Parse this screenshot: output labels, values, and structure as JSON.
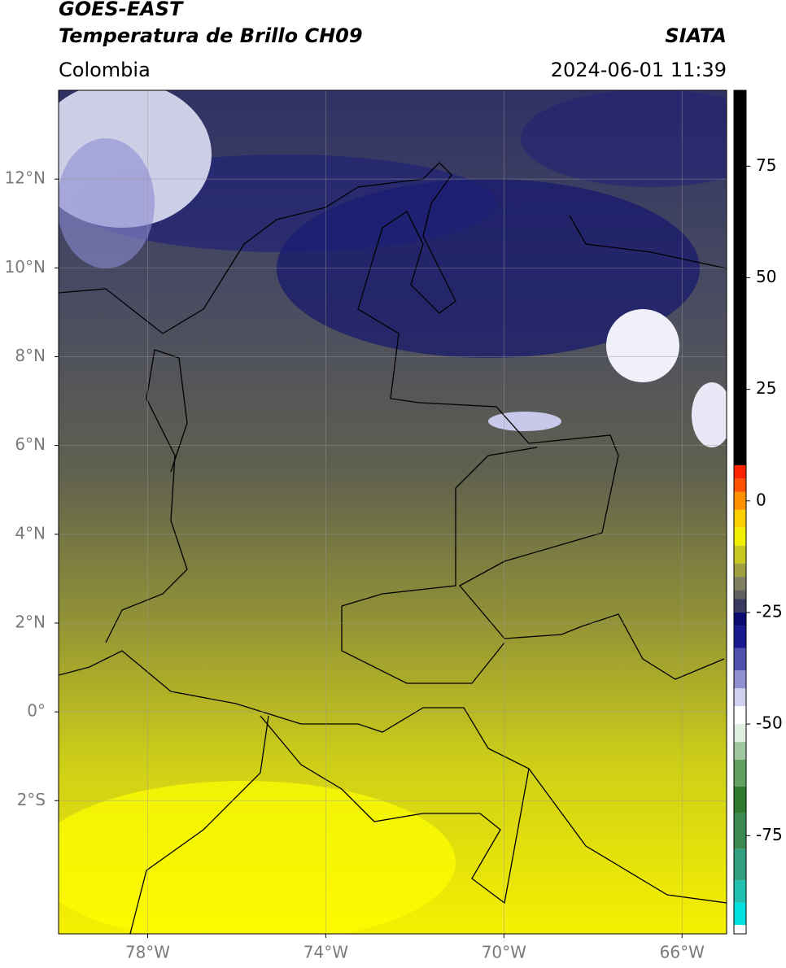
{
  "chart_data": {
    "type": "map",
    "title": "GOES-EAST",
    "subtitle": "Temperatura de Brillo CH09",
    "source": "SIATA",
    "region": "Colombia",
    "datetime": "2024-06-01 11:39",
    "xlim": [
      -80,
      -65
    ],
    "ylim": [
      -5,
      14
    ],
    "xticks": [
      {
        "value": -78,
        "label": "78°W"
      },
      {
        "value": -74,
        "label": "74°W"
      },
      {
        "value": -70,
        "label": "70°W"
      },
      {
        "value": -66,
        "label": "66°W"
      }
    ],
    "yticks": [
      {
        "value": -2,
        "label": "2°S"
      },
      {
        "value": 0,
        "label": "0°"
      },
      {
        "value": 2,
        "label": "2°N"
      },
      {
        "value": 4,
        "label": "4°N"
      },
      {
        "value": 6,
        "label": "6°N"
      },
      {
        "value": 8,
        "label": "8°N"
      },
      {
        "value": 10,
        "label": "10°N"
      },
      {
        "value": 12,
        "label": "12°N"
      }
    ],
    "grid": true,
    "colorbar": {
      "lim": [
        -97,
        92
      ],
      "ticks": [
        -75,
        -50,
        -25,
        0,
        25,
        50,
        75
      ],
      "stops": [
        {
          "value": -97,
          "color": "#ffffff"
        },
        {
          "value": -95,
          "color": "#00e0e0"
        },
        {
          "value": -90,
          "color": "#20c0b0"
        },
        {
          "value": -85,
          "color": "#30a080"
        },
        {
          "value": -78,
          "color": "#3a8a50"
        },
        {
          "value": -70,
          "color": "#2e7a2e"
        },
        {
          "value": -64,
          "color": "#60a060"
        },
        {
          "value": -58,
          "color": "#a0c8a0"
        },
        {
          "value": -54,
          "color": "#e0f0e0"
        },
        {
          "value": -50,
          "color": "#ffffff"
        },
        {
          "value": -46,
          "color": "#d0d0f0"
        },
        {
          "value": -42,
          "color": "#9090d0"
        },
        {
          "value": -38,
          "color": "#5050b0"
        },
        {
          "value": -33,
          "color": "#1a1a90"
        },
        {
          "value": -28,
          "color": "#0a0a70"
        },
        {
          "value": -25,
          "color": "#3a3a60"
        },
        {
          "value": -22,
          "color": "#606060"
        },
        {
          "value": -20,
          "color": "#808060"
        },
        {
          "value": -17,
          "color": "#a0a040"
        },
        {
          "value": -14,
          "color": "#c8c820"
        },
        {
          "value": -10,
          "color": "#f0f000"
        },
        {
          "value": -6,
          "color": "#ffd000"
        },
        {
          "value": -2,
          "color": "#ff9000"
        },
        {
          "value": 2,
          "color": "#ff5000"
        },
        {
          "value": 5,
          "color": "#ff2000"
        },
        {
          "value": 8,
          "color": "#000000"
        }
      ]
    }
  }
}
